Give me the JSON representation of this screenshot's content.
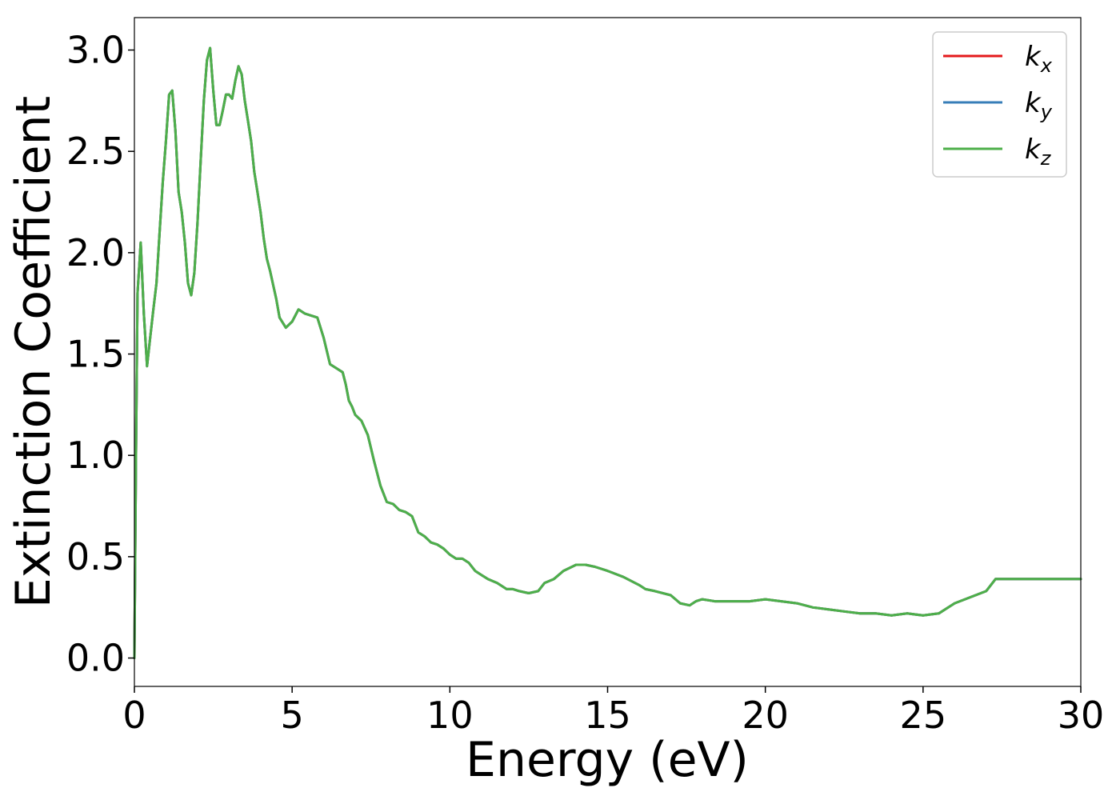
{
  "chart_data": {
    "type": "line",
    "xlabel": "Energy (eV)",
    "ylabel": "Extinction Coefficient",
    "xlim": [
      0,
      30
    ],
    "ylim": [
      -0.14,
      3.16
    ],
    "xticks": [
      "0",
      "5",
      "10",
      "15",
      "20",
      "25",
      "30"
    ],
    "yticks": [
      "0.0",
      "0.5",
      "1.0",
      "1.5",
      "2.0",
      "2.5",
      "3.0"
    ],
    "grid": false,
    "legend_position": "top-right",
    "x": [
      0.0,
      0.05,
      0.1,
      0.2,
      0.3,
      0.4,
      0.5,
      0.6,
      0.7,
      0.8,
      0.9,
      1.0,
      1.1,
      1.2,
      1.3,
      1.4,
      1.5,
      1.6,
      1.7,
      1.8,
      1.9,
      2.0,
      2.1,
      2.2,
      2.3,
      2.4,
      2.5,
      2.6,
      2.7,
      2.8,
      2.9,
      3.0,
      3.1,
      3.2,
      3.3,
      3.4,
      3.5,
      3.6,
      3.7,
      3.8,
      3.9,
      4.0,
      4.1,
      4.2,
      4.3,
      4.4,
      4.5,
      4.6,
      4.8,
      5.0,
      5.2,
      5.4,
      5.6,
      5.8,
      6.0,
      6.2,
      6.4,
      6.6,
      6.7,
      6.8,
      6.9,
      7.0,
      7.2,
      7.4,
      7.6,
      7.8,
      8.0,
      8.2,
      8.4,
      8.6,
      8.8,
      9.0,
      9.2,
      9.4,
      9.6,
      9.8,
      10.0,
      10.2,
      10.4,
      10.6,
      10.8,
      11.0,
      11.2,
      11.5,
      11.8,
      12.0,
      12.2,
      12.5,
      12.8,
      13.0,
      13.3,
      13.6,
      14.0,
      14.3,
      14.6,
      15.0,
      15.5,
      16.0,
      16.2,
      16.5,
      17.0,
      17.3,
      17.6,
      17.8,
      18.0,
      18.4,
      18.8,
      19.0,
      19.5,
      20.0,
      20.5,
      21.0,
      21.5,
      22.0,
      22.5,
      23.0,
      23.5,
      24.0,
      24.5,
      25.0,
      25.5,
      26.0,
      26.5,
      27.0,
      27.3,
      27.6,
      28.0,
      28.5,
      29.0,
      29.3,
      29.6,
      30.0
    ],
    "series": [
      {
        "name": "k_x",
        "label_base": "k",
        "label_sub": "x",
        "color": "#e41a1c",
        "values": [
          0.0,
          1.0,
          1.8,
          2.05,
          1.7,
          1.44,
          1.58,
          1.72,
          1.85,
          2.1,
          2.35,
          2.55,
          2.78,
          2.8,
          2.6,
          2.3,
          2.2,
          2.05,
          1.85,
          1.79,
          1.9,
          2.15,
          2.45,
          2.75,
          2.95,
          3.01,
          2.8,
          2.63,
          2.63,
          2.7,
          2.78,
          2.78,
          2.76,
          2.85,
          2.92,
          2.88,
          2.75,
          2.65,
          2.55,
          2.4,
          2.3,
          2.2,
          2.07,
          1.97,
          1.91,
          1.84,
          1.77,
          1.68,
          1.63,
          1.66,
          1.72,
          1.7,
          1.69,
          1.68,
          1.58,
          1.45,
          1.43,
          1.41,
          1.35,
          1.27,
          1.24,
          1.2,
          1.17,
          1.1,
          0.97,
          0.85,
          0.77,
          0.76,
          0.73,
          0.72,
          0.7,
          0.62,
          0.6,
          0.57,
          0.56,
          0.54,
          0.51,
          0.49,
          0.49,
          0.47,
          0.43,
          0.41,
          0.39,
          0.37,
          0.34,
          0.34,
          0.33,
          0.32,
          0.33,
          0.37,
          0.39,
          0.43,
          0.46,
          0.46,
          0.45,
          0.43,
          0.4,
          0.36,
          0.34,
          0.33,
          0.31,
          0.27,
          0.26,
          0.28,
          0.29,
          0.28,
          0.28,
          0.28,
          0.28,
          0.29,
          0.28,
          0.27,
          0.25,
          0.24,
          0.23,
          0.22,
          0.22,
          0.21,
          0.22,
          0.21,
          0.22,
          0.27,
          0.3,
          0.33,
          0.39,
          0.39,
          0.39,
          0.39,
          0.39,
          0.39,
          0.39,
          0.39
        ]
      },
      {
        "name": "k_y",
        "label_base": "k",
        "label_sub": "y",
        "color": "#377eb8",
        "values": [
          0.0,
          1.0,
          1.8,
          2.05,
          1.7,
          1.44,
          1.58,
          1.72,
          1.85,
          2.1,
          2.35,
          2.55,
          2.78,
          2.8,
          2.6,
          2.3,
          2.2,
          2.05,
          1.85,
          1.79,
          1.9,
          2.15,
          2.45,
          2.75,
          2.95,
          3.01,
          2.8,
          2.63,
          2.63,
          2.7,
          2.78,
          2.78,
          2.76,
          2.85,
          2.92,
          2.88,
          2.75,
          2.65,
          2.55,
          2.4,
          2.3,
          2.2,
          2.07,
          1.97,
          1.91,
          1.84,
          1.77,
          1.68,
          1.63,
          1.66,
          1.72,
          1.7,
          1.69,
          1.68,
          1.58,
          1.45,
          1.43,
          1.41,
          1.35,
          1.27,
          1.24,
          1.2,
          1.17,
          1.1,
          0.97,
          0.85,
          0.77,
          0.76,
          0.73,
          0.72,
          0.7,
          0.62,
          0.6,
          0.57,
          0.56,
          0.54,
          0.51,
          0.49,
          0.49,
          0.47,
          0.43,
          0.41,
          0.39,
          0.37,
          0.34,
          0.34,
          0.33,
          0.32,
          0.33,
          0.37,
          0.39,
          0.43,
          0.46,
          0.46,
          0.45,
          0.43,
          0.4,
          0.36,
          0.34,
          0.33,
          0.31,
          0.27,
          0.26,
          0.28,
          0.29,
          0.28,
          0.28,
          0.28,
          0.28,
          0.29,
          0.28,
          0.27,
          0.25,
          0.24,
          0.23,
          0.22,
          0.22,
          0.21,
          0.22,
          0.21,
          0.22,
          0.27,
          0.3,
          0.33,
          0.39,
          0.39,
          0.39,
          0.39,
          0.39,
          0.39,
          0.39,
          0.39
        ]
      },
      {
        "name": "k_z",
        "label_base": "k",
        "label_sub": "z",
        "color": "#4daf4a",
        "values": [
          0.0,
          1.0,
          1.8,
          2.05,
          1.7,
          1.44,
          1.58,
          1.72,
          1.85,
          2.1,
          2.35,
          2.55,
          2.78,
          2.8,
          2.6,
          2.3,
          2.2,
          2.05,
          1.85,
          1.79,
          1.9,
          2.15,
          2.45,
          2.75,
          2.95,
          3.01,
          2.8,
          2.63,
          2.63,
          2.7,
          2.78,
          2.78,
          2.76,
          2.85,
          2.92,
          2.88,
          2.75,
          2.65,
          2.55,
          2.4,
          2.3,
          2.2,
          2.07,
          1.97,
          1.91,
          1.84,
          1.77,
          1.68,
          1.63,
          1.66,
          1.72,
          1.7,
          1.69,
          1.68,
          1.58,
          1.45,
          1.43,
          1.41,
          1.35,
          1.27,
          1.24,
          1.2,
          1.17,
          1.1,
          0.97,
          0.85,
          0.77,
          0.76,
          0.73,
          0.72,
          0.7,
          0.62,
          0.6,
          0.57,
          0.56,
          0.54,
          0.51,
          0.49,
          0.49,
          0.47,
          0.43,
          0.41,
          0.39,
          0.37,
          0.34,
          0.34,
          0.33,
          0.32,
          0.33,
          0.37,
          0.39,
          0.43,
          0.46,
          0.46,
          0.45,
          0.43,
          0.4,
          0.36,
          0.34,
          0.33,
          0.31,
          0.27,
          0.26,
          0.28,
          0.29,
          0.28,
          0.28,
          0.28,
          0.28,
          0.29,
          0.28,
          0.27,
          0.25,
          0.24,
          0.23,
          0.22,
          0.22,
          0.21,
          0.22,
          0.21,
          0.22,
          0.27,
          0.3,
          0.33,
          0.39,
          0.39,
          0.39,
          0.39,
          0.39,
          0.39,
          0.39,
          0.39
        ]
      }
    ]
  }
}
